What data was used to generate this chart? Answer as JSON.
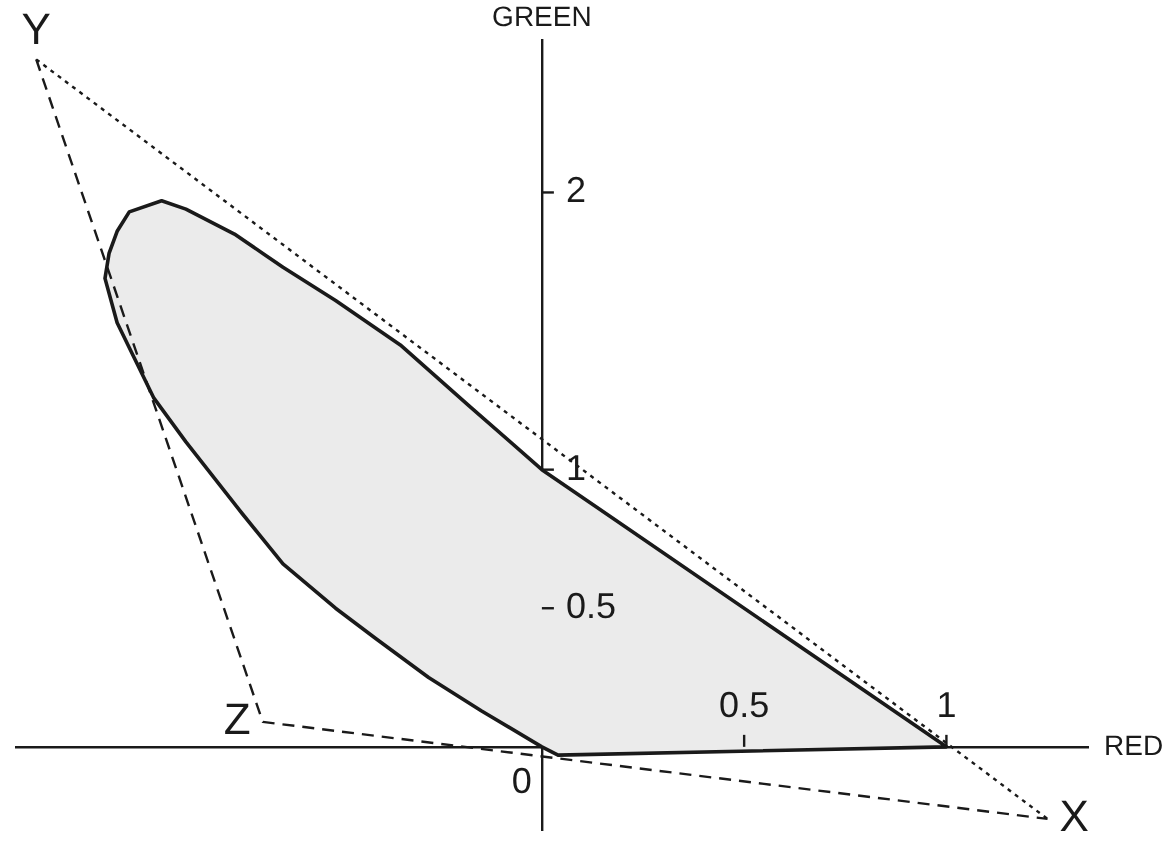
{
  "chart_data": {
    "type": "area",
    "xlabel": "RED",
    "ylabel": "GREEN",
    "series": [
      {
        "color": "#ebebeb",
        "x": [
          0,
          -0.15,
          -0.28,
          -0.41,
          -0.51,
          -0.64,
          -0.74,
          -0.88,
          -0.96,
          -1.05,
          -1.08,
          -1.07,
          -1.05,
          -1.02,
          -0.94,
          -0.88,
          -0.76,
          -0.64,
          -0.51,
          -0.35,
          -0.18,
          0,
          1,
          0.04,
          0
        ],
        "values": [
          0,
          0.13,
          0.25,
          0.39,
          0.5,
          0.66,
          0.84,
          1.1,
          1.26,
          1.53,
          1.69,
          1.78,
          1.86,
          1.93,
          1.97,
          1.94,
          1.85,
          1.73,
          1.61,
          1.45,
          1.23,
          1,
          0,
          -0.03,
          0
        ]
      },
      {
        "type": "line",
        "color": "#1a1a1a",
        "line_style": "dashed",
        "x": [
          -1.25,
          -0.69,
          1.25
        ],
        "values": [
          2.48,
          0.09,
          -0.26
        ]
      },
      {
        "type": "line",
        "color": "#1a1a1a",
        "line_style": "dotted",
        "x": [
          -1.25,
          1.25
        ],
        "values": [
          2.48,
          -0.26
        ]
      }
    ],
    "annotations": [
      {
        "text": "Y",
        "x": -1.25,
        "y": 2.48
      },
      {
        "text": "Z",
        "x": -0.69,
        "y": 0.09
      },
      {
        "text": "X",
        "x": 1.25,
        "y": -0.26
      },
      {
        "text": "0",
        "x": 0,
        "y": 0
      }
    ],
    "xlim": [
      -1.3,
      1.35
    ],
    "ylim": [
      -0.3,
      2.55
    ],
    "xticks": [
      0.5,
      1
    ],
    "yticks": [
      0.5,
      1,
      2
    ],
    "marker": "none"
  }
}
